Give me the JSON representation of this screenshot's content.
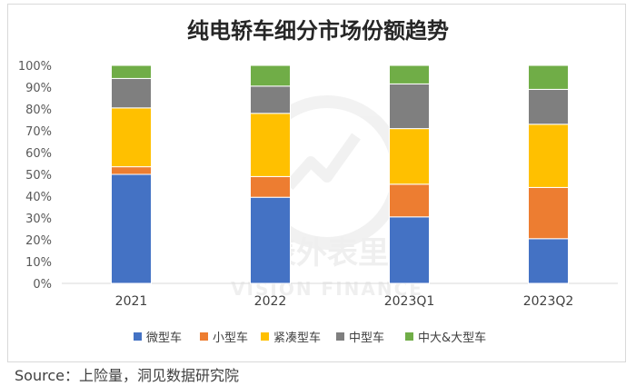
{
  "title": "纯电轿车细分市场份额趋势",
  "source_note": "Source：上险量，洞见数据研究院",
  "watermark": {
    "line1": "表外表里",
    "line2": "VISION FINANCE"
  },
  "chart_data": {
    "type": "bar",
    "stacked": true,
    "percent": true,
    "title": "纯电轿车细分市场份额趋势",
    "categories": [
      "2021",
      "2022",
      "2023Q1",
      "2023Q2"
    ],
    "ylim": [
      0,
      100
    ],
    "yticks": [
      "0%",
      "10%",
      "20%",
      "30%",
      "40%",
      "50%",
      "60%",
      "70%",
      "80%",
      "90%",
      "100%"
    ],
    "grid": false,
    "legend_position": "bottom",
    "series": [
      {
        "name": "微型车",
        "color": "#4472C4",
        "values": [
          50,
          39.5,
          30.5,
          20.5
        ]
      },
      {
        "name": "小型车",
        "color": "#ED7D31",
        "values": [
          3.5,
          9.5,
          15,
          23.5
        ]
      },
      {
        "name": "紧凑型车",
        "color": "#FFC000",
        "values": [
          27,
          29,
          25.5,
          29
        ]
      },
      {
        "name": "中型车",
        "color": "#7F7F7F",
        "values": [
          13.5,
          12.5,
          20.5,
          16
        ]
      },
      {
        "name": "中大&大型车",
        "color": "#70AD47",
        "values": [
          6,
          9.5,
          8.5,
          11
        ]
      }
    ]
  }
}
